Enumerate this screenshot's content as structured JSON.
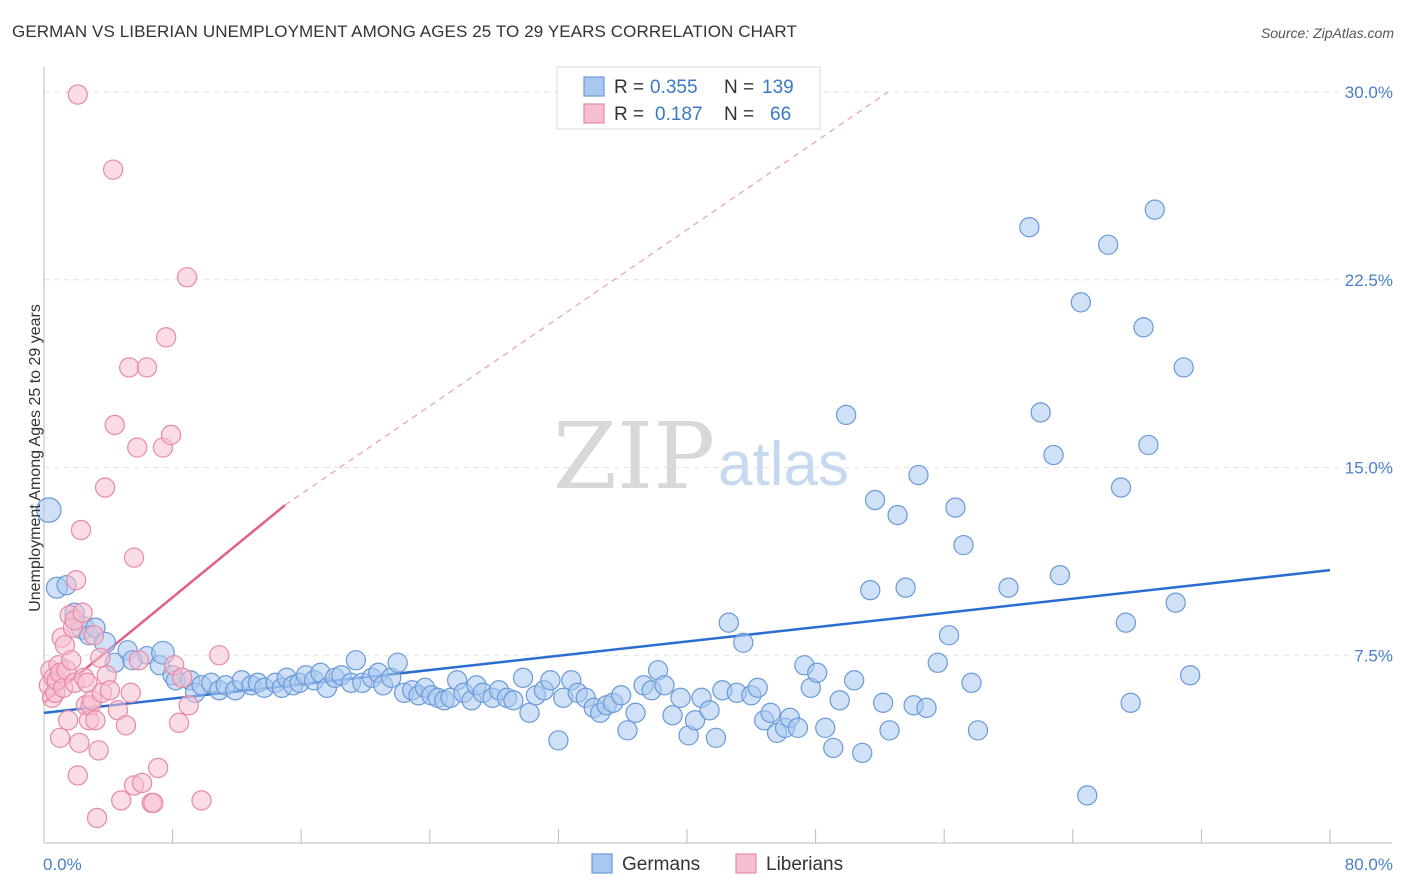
{
  "title": "GERMAN VS LIBERIAN UNEMPLOYMENT AMONG AGES 25 TO 29 YEARS CORRELATION CHART",
  "source": "Source: ZipAtlas.com",
  "watermark": {
    "zip": "ZIP",
    "atlas": "atlas"
  },
  "legend_top": [
    {
      "r_label": "R =",
      "r_value": "0.355",
      "n_label": "N =",
      "n_value": "139",
      "color": "#a9c8f0",
      "border": "#6a9ad8"
    },
    {
      "r_label": "R =",
      "r_value": "0.187",
      "n_label": "N =",
      "n_value": "66",
      "color": "#f6bfd0",
      "border": "#e889a8"
    }
  ],
  "legend_bottom": [
    {
      "label": "Germans",
      "color": "#a9c8f0",
      "border": "#6a9ad8"
    },
    {
      "label": "Liberians",
      "color": "#f6bfd0",
      "border": "#e889a8"
    }
  ],
  "chart_data": {
    "type": "scatter",
    "title": "GERMAN VS LIBERIAN UNEMPLOYMENT AMONG AGES 25 TO 29 YEARS CORRELATION CHART",
    "xlabel": "",
    "ylabel": "Unemployment Among Ages 25 to 29 years",
    "xlim": [
      0,
      80
    ],
    "ylim": [
      0,
      31
    ],
    "x_ticks": [
      "0.0%",
      "80.0%"
    ],
    "y_ticks": [
      {
        "value": 7.5,
        "label": "7.5%"
      },
      {
        "value": 15.0,
        "label": "15.0%"
      },
      {
        "value": 22.5,
        "label": "22.5%"
      },
      {
        "value": 30.0,
        "label": "30.0%"
      }
    ],
    "grid": true,
    "series": [
      {
        "name": "Germans",
        "color": "#a9c8f0",
        "edge": "#6a9ad8",
        "trend": {
          "color": "#2a6fcf",
          "x": [
            0,
            80
          ],
          "y": [
            5.2,
            10.9
          ]
        },
        "points": [
          [
            0.3,
            13.3,
            14
          ],
          [
            0.8,
            10.2,
            12
          ],
          [
            1.4,
            10.3,
            11
          ],
          [
            1.9,
            9.2,
            11
          ],
          [
            2.4,
            8.6,
            13
          ],
          [
            2.8,
            8.3,
            11
          ],
          [
            3.2,
            8.6,
            11
          ],
          [
            3.8,
            8.0,
            12
          ],
          [
            4.4,
            7.2,
            11
          ],
          [
            5.2,
            7.7,
            11
          ],
          [
            5.5,
            7.3,
            11
          ],
          [
            6.4,
            7.5,
            10
          ],
          [
            7.2,
            7.1,
            11
          ],
          [
            7.4,
            7.6,
            13
          ],
          [
            8.0,
            6.7,
            11
          ],
          [
            8.2,
            6.5,
            11
          ],
          [
            9.1,
            6.5,
            11
          ],
          [
            9.4,
            6.0,
            11
          ],
          [
            9.8,
            6.3,
            11
          ],
          [
            10.4,
            6.4,
            11
          ],
          [
            10.9,
            6.1,
            11
          ],
          [
            11.3,
            6.3,
            11
          ],
          [
            11.9,
            6.1,
            11
          ],
          [
            12.3,
            6.5,
            11
          ],
          [
            12.9,
            6.3,
            11
          ],
          [
            13.3,
            6.4,
            11
          ],
          [
            13.7,
            6.2,
            11
          ],
          [
            14.4,
            6.4,
            11
          ],
          [
            14.8,
            6.2,
            11
          ],
          [
            15.1,
            6.6,
            11
          ],
          [
            15.5,
            6.3,
            11
          ],
          [
            15.9,
            6.4,
            11
          ],
          [
            16.3,
            6.7,
            11
          ],
          [
            16.8,
            6.5,
            11
          ],
          [
            17.2,
            6.8,
            11
          ],
          [
            17.6,
            6.2,
            11
          ],
          [
            18.1,
            6.6,
            11
          ],
          [
            18.5,
            6.7,
            11
          ],
          [
            19.1,
            6.4,
            11
          ],
          [
            19.4,
            7.3,
            11
          ],
          [
            19.8,
            6.4,
            11
          ],
          [
            20.4,
            6.6,
            11
          ],
          [
            20.8,
            6.8,
            11
          ],
          [
            21.1,
            6.3,
            11
          ],
          [
            21.6,
            6.6,
            11
          ],
          [
            22.0,
            7.2,
            11
          ],
          [
            22.4,
            6.0,
            11
          ],
          [
            22.9,
            6.1,
            11
          ],
          [
            23.3,
            5.9,
            11
          ],
          [
            23.7,
            6.2,
            11
          ],
          [
            24.1,
            5.9,
            11
          ],
          [
            24.5,
            5.8,
            11
          ],
          [
            24.9,
            5.7,
            11
          ],
          [
            25.3,
            5.8,
            11
          ],
          [
            25.7,
            6.5,
            11
          ],
          [
            26.1,
            6.0,
            11
          ],
          [
            26.6,
            5.7,
            11
          ],
          [
            26.9,
            6.3,
            11
          ],
          [
            27.3,
            6.0,
            11
          ],
          [
            27.9,
            5.8,
            11
          ],
          [
            28.3,
            6.1,
            11
          ],
          [
            28.8,
            5.8,
            11
          ],
          [
            29.2,
            5.7,
            11
          ],
          [
            29.8,
            6.6,
            11
          ],
          [
            30.2,
            5.2,
            11
          ],
          [
            30.6,
            5.9,
            11
          ],
          [
            31.1,
            6.1,
            11
          ],
          [
            31.5,
            6.5,
            11
          ],
          [
            32.0,
            4.1,
            11
          ],
          [
            32.3,
            5.8,
            11
          ],
          [
            32.8,
            6.5,
            11
          ],
          [
            33.2,
            6.0,
            11
          ],
          [
            33.7,
            5.8,
            11
          ],
          [
            34.2,
            5.4,
            11
          ],
          [
            34.6,
            5.2,
            11
          ],
          [
            35.0,
            5.5,
            11
          ],
          [
            35.4,
            5.6,
            11
          ],
          [
            35.9,
            5.9,
            11
          ],
          [
            36.3,
            4.5,
            11
          ],
          [
            36.8,
            5.2,
            11
          ],
          [
            37.3,
            6.3,
            11
          ],
          [
            37.8,
            6.1,
            11
          ],
          [
            38.2,
            6.9,
            11
          ],
          [
            38.6,
            6.3,
            11
          ],
          [
            39.1,
            5.1,
            11
          ],
          [
            39.6,
            5.8,
            11
          ],
          [
            40.1,
            4.3,
            11
          ],
          [
            40.5,
            4.9,
            11
          ],
          [
            40.9,
            5.8,
            11
          ],
          [
            41.4,
            5.3,
            11
          ],
          [
            41.8,
            4.2,
            11
          ],
          [
            42.2,
            6.1,
            11
          ],
          [
            42.6,
            8.8,
            11
          ],
          [
            43.1,
            6.0,
            11
          ],
          [
            43.5,
            8.0,
            11
          ],
          [
            44.0,
            5.9,
            11
          ],
          [
            44.4,
            6.2,
            11
          ],
          [
            44.8,
            4.9,
            11
          ],
          [
            45.2,
            5.2,
            11
          ],
          [
            45.6,
            4.4,
            11
          ],
          [
            46.1,
            4.6,
            11
          ],
          [
            46.4,
            5.0,
            11
          ],
          [
            46.9,
            4.6,
            11
          ],
          [
            47.3,
            7.1,
            11
          ],
          [
            47.7,
            6.2,
            11
          ],
          [
            48.1,
            6.8,
            11
          ],
          [
            48.6,
            4.6,
            11
          ],
          [
            49.1,
            3.8,
            11
          ],
          [
            49.5,
            5.7,
            11
          ],
          [
            49.9,
            17.1,
            11
          ],
          [
            50.4,
            6.5,
            11
          ],
          [
            50.9,
            3.6,
            11
          ],
          [
            51.4,
            10.1,
            11
          ],
          [
            51.7,
            13.7,
            11
          ],
          [
            52.2,
            5.6,
            11
          ],
          [
            52.6,
            4.5,
            11
          ],
          [
            53.1,
            13.1,
            11
          ],
          [
            53.6,
            10.2,
            11
          ],
          [
            54.1,
            5.5,
            11
          ],
          [
            54.4,
            14.7,
            11
          ],
          [
            54.9,
            5.4,
            11
          ],
          [
            55.6,
            7.2,
            11
          ],
          [
            56.3,
            8.3,
            11
          ],
          [
            56.7,
            13.4,
            11
          ],
          [
            57.2,
            11.9,
            11
          ],
          [
            57.7,
            6.4,
            11
          ],
          [
            58.1,
            4.5,
            11
          ],
          [
            60.0,
            10.2,
            11
          ],
          [
            61.3,
            24.6,
            11
          ],
          [
            62.0,
            17.2,
            11
          ],
          [
            62.8,
            15.5,
            11
          ],
          [
            63.2,
            10.7,
            11
          ],
          [
            64.5,
            21.6,
            11
          ],
          [
            64.9,
            1.9,
            11
          ],
          [
            66.2,
            23.9,
            11
          ],
          [
            67.0,
            14.2,
            11
          ],
          [
            67.3,
            8.8,
            11
          ],
          [
            67.6,
            5.6,
            11
          ],
          [
            68.4,
            20.6,
            11
          ],
          [
            68.7,
            15.9,
            11
          ],
          [
            69.1,
            25.3,
            11
          ],
          [
            70.4,
            9.6,
            11
          ],
          [
            70.9,
            19.0,
            11
          ],
          [
            71.3,
            6.7,
            11
          ]
        ]
      },
      {
        "name": "Liberians",
        "color": "#f6bfd0",
        "edge": "#e889a8",
        "trend": {
          "color": "#e0608a",
          "x": [
            0,
            15
          ],
          "y": [
            5.6,
            13.5
          ],
          "dash_x": [
            15,
            52.5
          ],
          "dash_y": [
            13.5,
            30.0
          ]
        },
        "points": [
          [
            0.3,
            6.3,
            11
          ],
          [
            0.4,
            6.9,
            11
          ],
          [
            0.5,
            5.8,
            11
          ],
          [
            0.6,
            6.6,
            11
          ],
          [
            0.7,
            6.0,
            11
          ],
          [
            0.8,
            6.5,
            11
          ],
          [
            0.9,
            7.1,
            11
          ],
          [
            1.0,
            6.8,
            11
          ],
          [
            1.0,
            4.2,
            11
          ],
          [
            1.1,
            8.2,
            11
          ],
          [
            1.2,
            6.2,
            11
          ],
          [
            1.3,
            7.9,
            11
          ],
          [
            1.4,
            6.9,
            11
          ],
          [
            1.5,
            4.9,
            11
          ],
          [
            1.6,
            9.1,
            11
          ],
          [
            1.7,
            7.3,
            11
          ],
          [
            1.8,
            8.6,
            11
          ],
          [
            1.9,
            8.9,
            11
          ],
          [
            1.9,
            6.4,
            11
          ],
          [
            2.0,
            10.5,
            11
          ],
          [
            2.1,
            2.7,
            11
          ],
          [
            2.2,
            4.0,
            11
          ],
          [
            2.3,
            12.5,
            11
          ],
          [
            2.4,
            9.2,
            11
          ],
          [
            2.5,
            6.6,
            11
          ],
          [
            2.6,
            5.5,
            11
          ],
          [
            2.7,
            6.4,
            11
          ],
          [
            2.8,
            4.9,
            11
          ],
          [
            2.9,
            5.5,
            11
          ],
          [
            3.0,
            5.7,
            11
          ],
          [
            3.1,
            8.3,
            11
          ],
          [
            3.2,
            4.9,
            11
          ],
          [
            3.3,
            1.0,
            11
          ],
          [
            3.4,
            3.7,
            11
          ],
          [
            3.5,
            7.4,
            11
          ],
          [
            3.6,
            6.0,
            11
          ],
          [
            3.8,
            14.2,
            11
          ],
          [
            3.9,
            6.7,
            11
          ],
          [
            4.1,
            6.1,
            11
          ],
          [
            4.4,
            16.7,
            11
          ],
          [
            4.6,
            5.3,
            11
          ],
          [
            4.8,
            1.7,
            11
          ],
          [
            5.1,
            4.7,
            11
          ],
          [
            5.3,
            19.0,
            11
          ],
          [
            5.4,
            6.0,
            11
          ],
          [
            5.6,
            2.3,
            11
          ],
          [
            5.6,
            11.4,
            11
          ],
          [
            5.8,
            15.8,
            11
          ],
          [
            5.9,
            7.3,
            11
          ],
          [
            6.1,
            2.4,
            11
          ],
          [
            6.4,
            19.0,
            11
          ],
          [
            6.7,
            1.6,
            11
          ],
          [
            6.8,
            1.6,
            11
          ],
          [
            7.1,
            3.0,
            11
          ],
          [
            7.4,
            15.8,
            11
          ],
          [
            7.6,
            20.2,
            11
          ],
          [
            7.9,
            16.3,
            11
          ],
          [
            8.1,
            7.1,
            11
          ],
          [
            8.4,
            4.8,
            11
          ],
          [
            8.6,
            6.6,
            11
          ],
          [
            8.9,
            22.6,
            11
          ],
          [
            9.0,
            5.5,
            11
          ],
          [
            9.8,
            1.7,
            11
          ],
          [
            10.9,
            7.5,
            11
          ],
          [
            2.1,
            29.9,
            11
          ],
          [
            4.3,
            26.9,
            11
          ]
        ]
      }
    ]
  }
}
